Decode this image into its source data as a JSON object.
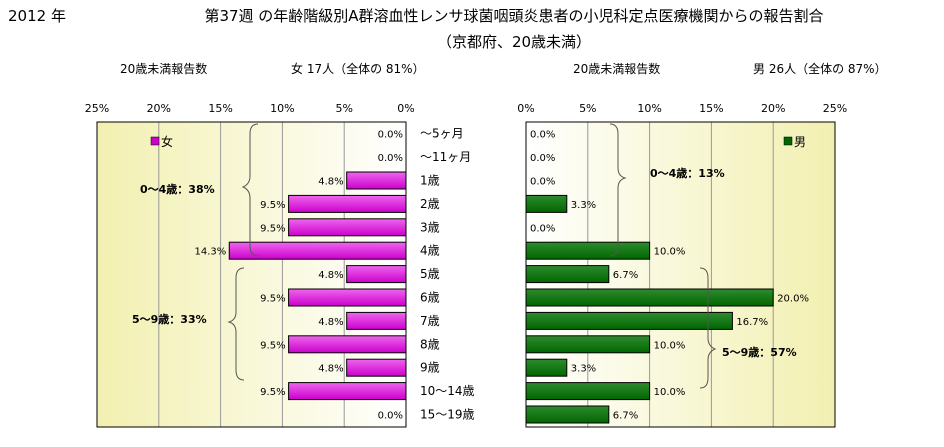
{
  "header": {
    "year": "2012 年",
    "title": "第37週 の年齢階級別A群溶血性レンサ球菌咽頭炎患者の小児科定点医療機関からの報告割合",
    "subtitle": "（京都府、20歳未満）"
  },
  "colors": {
    "female_bar": "#cc00cc",
    "male_bar": "#006600",
    "grid": "#999999",
    "plot_bg_center": "#ffffff",
    "plot_bg_edge": "#f2f0b0"
  },
  "chart_data": [
    {
      "type": "bar",
      "orientation": "horizontal-left",
      "caption_left": "20歳未満報告数",
      "caption_right": "女 17人（全体の 81%）",
      "legend": "女",
      "legend_position": "top-left",
      "xlim": [
        0,
        25
      ],
      "ticks": [
        "25%",
        "20%",
        "15%",
        "10%",
        "5%",
        "0%"
      ],
      "grid": true,
      "categories": [
        "～5ヶ月",
        "～11ヶ月",
        "1歳",
        "2歳",
        "3歳",
        "4歳",
        "5歳",
        "6歳",
        "7歳",
        "8歳",
        "9歳",
        "10～14歳",
        "15～19歳"
      ],
      "values": [
        0.0,
        0.0,
        4.8,
        9.5,
        9.5,
        14.3,
        4.8,
        9.5,
        4.8,
        9.5,
        4.8,
        9.5,
        0.0
      ],
      "labels": [
        "0.0%",
        "0.0%",
        "4.8%",
        "9.5%",
        "9.5%",
        "14.3%",
        "4.8%",
        "9.5%",
        "4.8%",
        "9.5%",
        "4.8%",
        "9.5%",
        "0.0%"
      ],
      "annotations": [
        "0～4歳：38%",
        "5～9歳：33%"
      ]
    },
    {
      "type": "bar",
      "orientation": "horizontal-right",
      "caption_left": "20歳未満報告数",
      "caption_right": "男 26人（全体の 87%）",
      "legend": "男",
      "legend_position": "top-right",
      "xlim": [
        0,
        25
      ],
      "ticks": [
        "0%",
        "5%",
        "10%",
        "15%",
        "20%",
        "25%"
      ],
      "grid": true,
      "values": [
        0.0,
        0.0,
        0.0,
        3.3,
        0.0,
        10.0,
        6.7,
        20.0,
        16.7,
        10.0,
        3.3,
        10.0,
        6.7
      ],
      "labels": [
        "0.0%",
        "0.0%",
        "0.0%",
        "3.3%",
        "0.0%",
        "10.0%",
        "6.7%",
        "20.0%",
        "16.7%",
        "10.0%",
        "3.3%",
        "10.0%",
        "6.7%"
      ],
      "annotations": [
        "0～4歳：13%",
        "5～9歳：57%"
      ]
    }
  ]
}
